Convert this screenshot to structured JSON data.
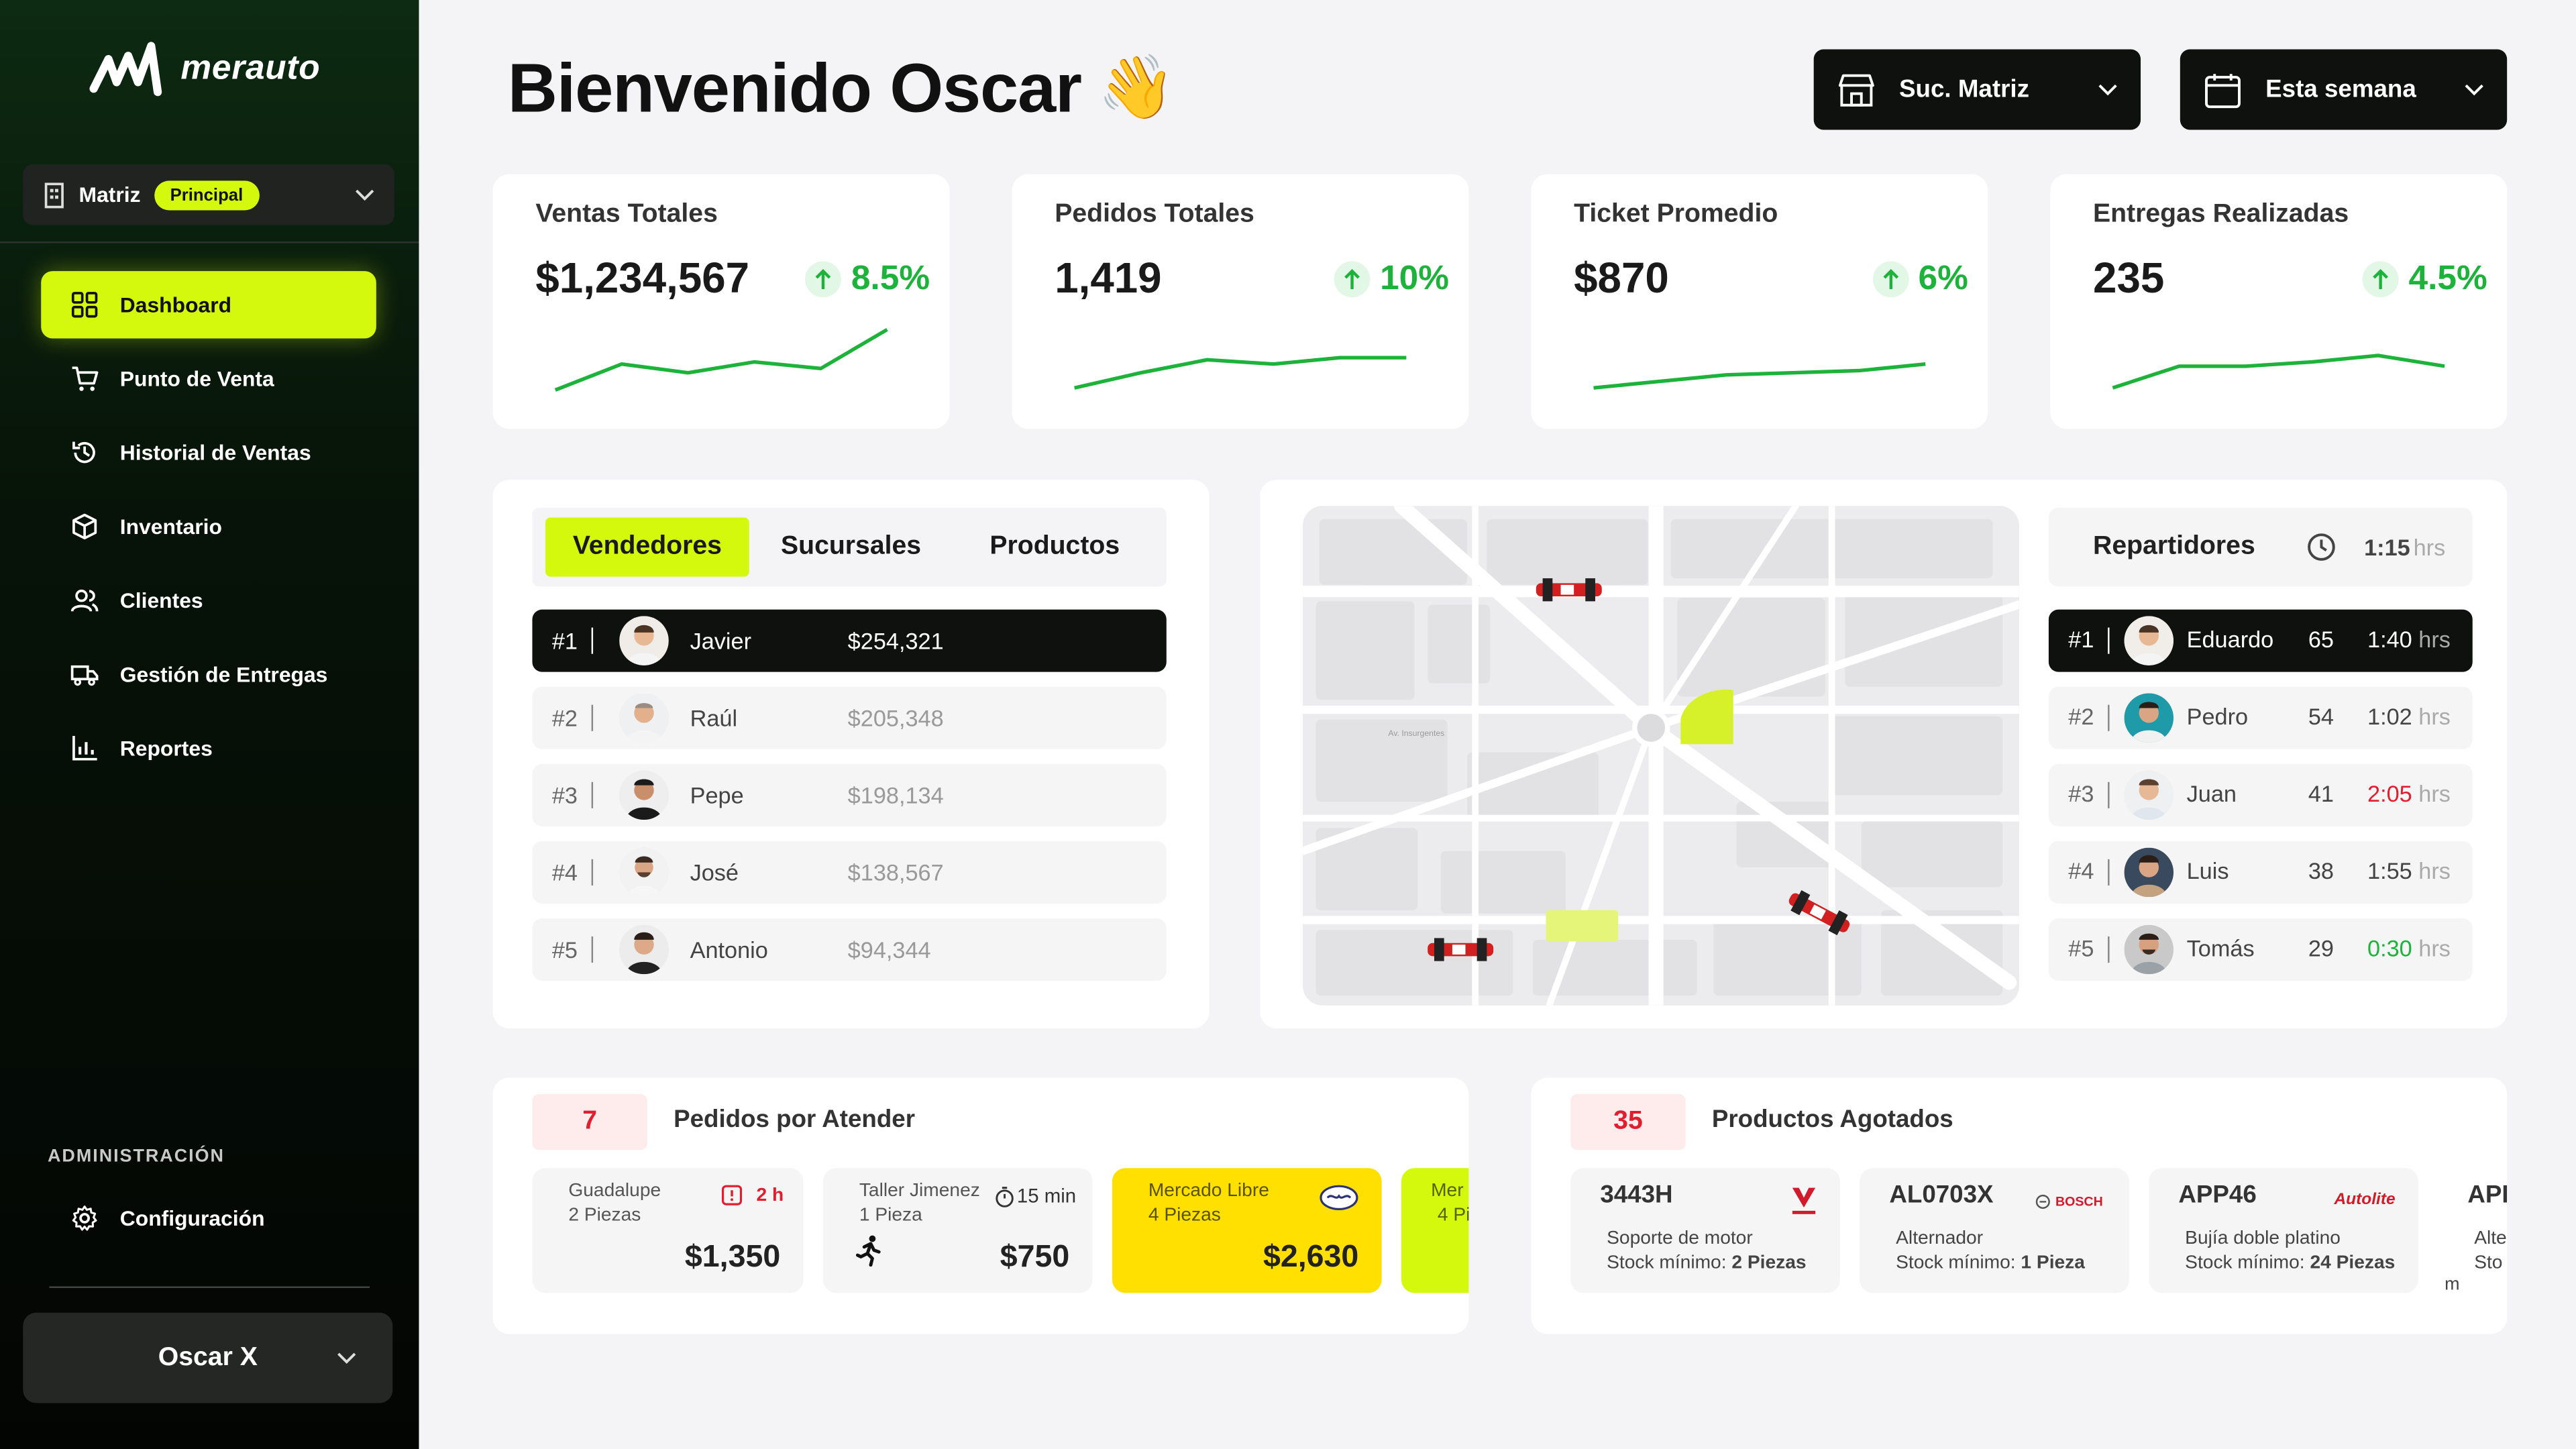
{
  "app": {
    "brand": "merauto"
  },
  "sidebar": {
    "branch_name": "Matriz",
    "branch_badge": "Principal",
    "nav": [
      {
        "label": "Dashboard",
        "icon": "dashboard-icon",
        "active": true
      },
      {
        "label": "Punto de Venta",
        "icon": "cart-icon"
      },
      {
        "label": "Historial de Ventas",
        "icon": "history-icon"
      },
      {
        "label": "Inventario",
        "icon": "box-icon"
      },
      {
        "label": "Clientes",
        "icon": "users-icon"
      },
      {
        "label": "Gestión de Entregas",
        "icon": "truck-icon"
      },
      {
        "label": "Reportes",
        "icon": "chart-icon"
      }
    ],
    "admin_label": "ADMINISTRACIÓN",
    "config_label": "Configuración",
    "user_name": "Oscar X"
  },
  "header": {
    "title": "Bienvenido Oscar",
    "emoji": "👋",
    "branch_button": "Suc. Matriz",
    "period_button": "Esta semana"
  },
  "kpis": [
    {
      "title": "Ventas Totales",
      "value": "$1,234,567",
      "change": "8.5%",
      "trend": [
        2,
        14,
        10,
        15,
        12,
        30
      ]
    },
    {
      "title": "Pedidos Totales",
      "value": "1,419",
      "change": "10%",
      "trend": [
        3,
        10,
        16,
        14,
        17,
        17
      ]
    },
    {
      "title": "Ticket Promedio",
      "value": "$870",
      "change": "6%",
      "trend": [
        3,
        6,
        9,
        10,
        11,
        14
      ]
    },
    {
      "title": "Entregas Realizadas",
      "value": "235",
      "change": "4.5%",
      "trend": [
        3,
        13,
        13,
        15,
        18,
        13
      ]
    }
  ],
  "rank_tabs": [
    "Vendedores",
    "Sucursales",
    "Productos"
  ],
  "sellers": [
    {
      "rank": "#1",
      "name": "Javier",
      "amount": "$254,321"
    },
    {
      "rank": "#2",
      "name": "Raúl",
      "amount": "$205,348"
    },
    {
      "rank": "#3",
      "name": "Pepe",
      "amount": "$198,134"
    },
    {
      "rank": "#4",
      "name": "José",
      "amount": "$138,567"
    },
    {
      "rank": "#5",
      "name": "Antonio",
      "amount": "$94,344"
    }
  ],
  "map": {
    "street_label": "Av. Insurgentes"
  },
  "delivery": {
    "title": "Repartidores",
    "time": "1:15",
    "unit": "hrs",
    "drivers": [
      {
        "rank": "#1",
        "name": "Eduardo",
        "count": "65",
        "time": "1:40",
        "status": "normal"
      },
      {
        "rank": "#2",
        "name": "Pedro",
        "count": "54",
        "time": "1:02",
        "status": "normal"
      },
      {
        "rank": "#3",
        "name": "Juan",
        "count": "41",
        "time": "2:05",
        "status": "late",
        "color": "#e11d2e"
      },
      {
        "rank": "#4",
        "name": "Luis",
        "count": "38",
        "time": "1:55",
        "status": "normal"
      },
      {
        "rank": "#5",
        "name": "Tomás",
        "count": "29",
        "time": "0:30",
        "status": "fast",
        "color": "#1db33b"
      }
    ]
  },
  "orders": {
    "count": "7",
    "title": "Pedidos por Atender",
    "items": [
      {
        "name": "Guadalupe",
        "pieces": "2 Piezas",
        "time": "2 h",
        "amount": "$1,350",
        "icon": "alert-icon"
      },
      {
        "name": "Taller Jimenez",
        "pieces": "1 Pieza",
        "time": "15 min",
        "amount": "$750",
        "icon": "stopwatch-icon"
      },
      {
        "name": "Mercado Libre",
        "pieces": "4 Piezas",
        "amount": "$2,630",
        "icon": "mercadolibre-icon"
      },
      {
        "name": "Mer",
        "pieces": "4 Pi"
      }
    ]
  },
  "stockouts": {
    "count": "35",
    "title": "Productos Agotados",
    "items": [
      {
        "code": "3443H",
        "desc": "Soporte de motor",
        "stock_label": "Stock mínimo:",
        "stock_value": "2 Piezas",
        "brand": "VAZLO"
      },
      {
        "code": "AL0703X",
        "desc": "Alternador",
        "stock_label": "Stock mínimo:",
        "stock_value": "1 Pieza",
        "brand": "BOSCH"
      },
      {
        "code": "APP46",
        "desc": "Bujía doble platino",
        "stock_label": "Stock mínimo:",
        "stock_value": "24 Piezas",
        "brand": "Autolite"
      },
      {
        "code": "API",
        "desc": "Alte",
        "stock_label": "Sto",
        "extra": "m"
      }
    ]
  },
  "colors": {
    "accent": "#d4f90c",
    "positive": "#1db33b",
    "negative": "#e11d2e",
    "dark": "#0e110e"
  }
}
